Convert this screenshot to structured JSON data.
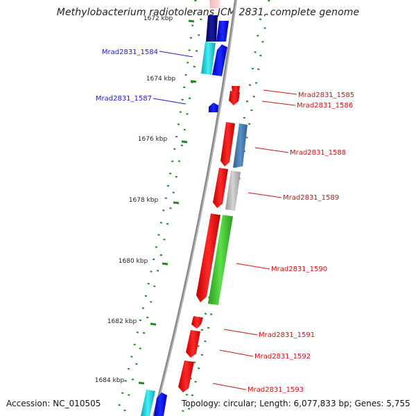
{
  "title": "Methylobacterium radiotolerans JCM 2831, complete genome",
  "footer": {
    "accession": "Accession: NC_010505",
    "topology": "Topology: circular; Length: 6,077,833 bp; Genes: 5,755"
  },
  "ticks": [
    {
      "label": "1672 kbp"
    },
    {
      "label": "1674 kbp"
    },
    {
      "label": "1676 kbp"
    },
    {
      "label": "1678 kbp"
    },
    {
      "label": "1680 kbp"
    },
    {
      "label": "1682 kbp"
    },
    {
      "label": "1684 kbp"
    }
  ],
  "genes_minus_strand": [
    {
      "name": "Mrad2831_1584",
      "color": "#1a1ad0"
    },
    {
      "name": "Mrad2831_1587",
      "color": "#1a1ad0"
    }
  ],
  "genes_plus_strand": [
    {
      "name": "Mrad2831_1585",
      "color": "#cc1111"
    },
    {
      "name": "Mrad2831_1586",
      "color": "#cc1111"
    },
    {
      "name": "Mrad2831_1588",
      "color": "#cc1111"
    },
    {
      "name": "Mrad2831_1589",
      "color": "#cc1111"
    },
    {
      "name": "Mrad2831_1590",
      "color": "#cc1111"
    },
    {
      "name": "Mrad2831_1591",
      "color": "#cc1111"
    },
    {
      "name": "Mrad2831_1592",
      "color": "#cc1111"
    },
    {
      "name": "Mrad2831_1593",
      "color": "#cc1111"
    }
  ],
  "colors": {
    "forward_cds": "#ff1a1a",
    "reverse_cds": "#0a10e6",
    "orf_dots": "#1f8a1f",
    "backbone": "#8a8a8a",
    "cog_green": "#4ccf3a",
    "cog_steel": "#4a7fb5",
    "cog_grey": "#bdbdbd",
    "cog_cyan": "#22d7e0",
    "cog_navy": "#000080"
  }
}
